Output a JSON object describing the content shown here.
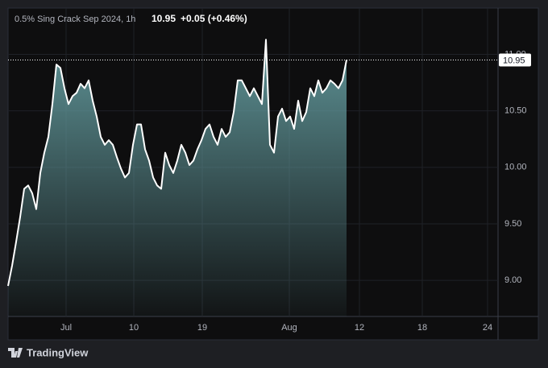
{
  "chart_data": {
    "type": "area",
    "title": "0.5% Sing Crack Sep 2024, 1h",
    "last_price": 10.95,
    "change": "+0.05 (+0.46%)",
    "brand": "TradingView",
    "series": [
      {
        "name": "0.5% Sing Crack Sep 2024",
        "color": "#ffffff",
        "values": [
          8.95,
          9.13,
          9.34,
          9.56,
          9.81,
          9.84,
          9.77,
          9.63,
          9.95,
          10.13,
          10.27,
          10.56,
          10.91,
          10.88,
          10.7,
          10.56,
          10.63,
          10.66,
          10.74,
          10.7,
          10.77,
          10.59,
          10.45,
          10.27,
          10.2,
          10.24,
          10.2,
          10.09,
          9.99,
          9.91,
          9.95,
          10.2,
          10.38,
          10.38,
          10.16,
          10.06,
          9.91,
          9.84,
          9.81,
          10.13,
          10.02,
          9.95,
          10.06,
          10.2,
          10.13,
          10.02,
          10.06,
          10.16,
          10.24,
          10.34,
          10.38,
          10.27,
          10.2,
          10.34,
          10.27,
          10.31,
          10.49,
          10.77,
          10.77,
          10.7,
          10.63,
          10.7,
          10.63,
          10.56,
          11.13,
          10.2,
          10.13,
          10.45,
          10.52,
          10.41,
          10.45,
          10.34,
          10.59,
          10.41,
          10.49,
          10.7,
          10.63,
          10.77,
          10.66,
          10.7,
          10.77,
          10.74,
          10.7,
          10.77,
          10.95
        ]
      }
    ],
    "fill_color": "#5f9497",
    "xlim": [
      0,
      121.6
    ],
    "xticks": [
      {
        "value": 14.4,
        "label": "Jul"
      },
      {
        "value": 31.2,
        "label": "10"
      },
      {
        "value": 48.2,
        "label": "19"
      },
      {
        "value": 69.8,
        "label": "Aug"
      },
      {
        "value": 87.2,
        "label": "12"
      },
      {
        "value": 102.8,
        "label": "18"
      },
      {
        "value": 119,
        "label": "24"
      }
    ],
    "ylim": [
      8.68,
      11.41
    ],
    "yticks": [
      {
        "value": 9,
        "label": "9.00"
      },
      {
        "value": 9.5,
        "label": "9.50"
      },
      {
        "value": 10,
        "label": "10.00"
      },
      {
        "value": 10.5,
        "label": "10.50"
      },
      {
        "value": 11,
        "label": "11.00"
      }
    ],
    "grid": true
  }
}
